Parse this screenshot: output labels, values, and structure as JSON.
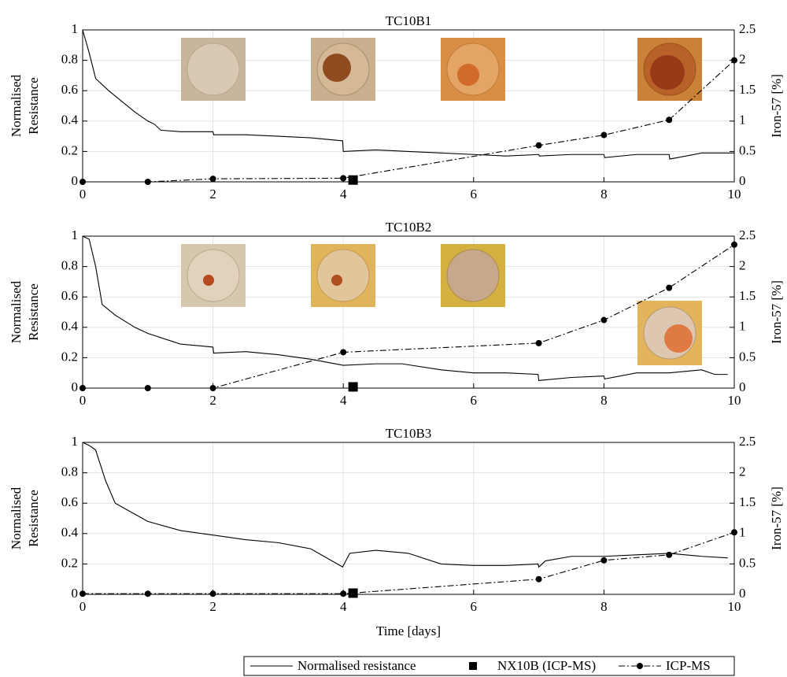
{
  "chart_data": [
    {
      "type": "line",
      "title": "TC10B1",
      "ylabel": [
        "Normalised",
        "Resistance"
      ],
      "y2label": "Iron-57 [%]",
      "xlim": [
        0,
        10
      ],
      "xticks": [
        0,
        2,
        4,
        6,
        8,
        10
      ],
      "ylim": [
        0,
        1
      ],
      "yticks": [
        0,
        0.2,
        0.4,
        0.6,
        0.8,
        1
      ],
      "y2lim": [
        0,
        2.5
      ],
      "y2ticks": [
        0,
        0.5,
        1,
        1.5,
        2,
        2.5
      ],
      "grid": true,
      "series": [
        {
          "name": "Normalised resistance",
          "color": "#000000",
          "linestyle": "solid",
          "marker": "none",
          "x": [
            0,
            0.1,
            0.2,
            0.4,
            0.6,
            0.8,
            1,
            1.1,
            1.2,
            1.5,
            2,
            2.01,
            2.5,
            3,
            3.5,
            3.99,
            4,
            4.5,
            5,
            5.5,
            6,
            6.5,
            7,
            7.01,
            7.5,
            8,
            8.01,
            8.5,
            9,
            9.01,
            9.5,
            10
          ],
          "values": [
            1,
            0.85,
            0.68,
            0.6,
            0.53,
            0.46,
            0.4,
            0.38,
            0.34,
            0.33,
            0.33,
            0.31,
            0.31,
            0.3,
            0.29,
            0.27,
            0.2,
            0.21,
            0.2,
            0.19,
            0.18,
            0.17,
            0.18,
            0.17,
            0.18,
            0.18,
            0.16,
            0.18,
            0.18,
            0.15,
            0.19,
            0.19
          ]
        },
        {
          "name": "NX10B (ICP-MS)",
          "color": "#000000",
          "linestyle": "none",
          "marker": "square",
          "axis": "y2",
          "x": [
            4.15
          ],
          "values": [
            0.03
          ]
        },
        {
          "name": "ICP-MS",
          "color": "#000000",
          "linestyle": "dashdot",
          "marker": "circle",
          "axis": "y2",
          "x": [
            0,
            1,
            2,
            4,
            7,
            8,
            9,
            10
          ],
          "values": [
            0,
            0,
            0.05,
            0.06,
            0.6,
            0.77,
            1.02,
            2.0
          ]
        }
      ]
    },
    {
      "type": "line",
      "title": "TC10B2",
      "ylabel": [
        "Normalised",
        "Resistance"
      ],
      "y2label": "Iron-57 [%]",
      "xlim": [
        0,
        10
      ],
      "xticks": [
        0,
        2,
        4,
        6,
        8,
        10
      ],
      "ylim": [
        0,
        1
      ],
      "yticks": [
        0,
        0.2,
        0.4,
        0.6,
        0.8,
        1
      ],
      "y2lim": [
        0,
        2.5
      ],
      "y2ticks": [
        0,
        0.5,
        1,
        1.5,
        2,
        2.5
      ],
      "grid": true,
      "series": [
        {
          "color": "#000000",
          "linestyle": "solid",
          "marker": "none",
          "x": [
            0,
            0.1,
            0.2,
            0.3,
            0.5,
            0.8,
            1,
            1.5,
            2,
            2.01,
            2.5,
            3,
            3.5,
            4,
            4.5,
            4.9,
            5.5,
            6,
            6.5,
            6.99,
            7,
            7.5,
            8,
            8.01,
            8.5,
            9,
            9.5,
            9.7,
            9.9
          ],
          "values": [
            1,
            0.98,
            0.8,
            0.55,
            0.48,
            0.4,
            0.36,
            0.29,
            0.27,
            0.23,
            0.24,
            0.22,
            0.19,
            0.15,
            0.16,
            0.16,
            0.12,
            0.1,
            0.1,
            0.09,
            0.05,
            0.07,
            0.08,
            0.06,
            0.1,
            0.1,
            0.12,
            0.09,
            0.09
          ]
        },
        {
          "color": "#000000",
          "linestyle": "none",
          "marker": "square",
          "axis": "y2",
          "x": [
            4.15
          ],
          "values": [
            0.02
          ]
        },
        {
          "color": "#000000",
          "linestyle": "dashdot",
          "marker": "circle",
          "axis": "y2",
          "x": [
            0,
            1,
            2,
            4,
            7,
            8,
            9,
            10
          ],
          "values": [
            0,
            0,
            0,
            0.59,
            0.74,
            1.12,
            1.65,
            2.36
          ]
        }
      ]
    },
    {
      "type": "line",
      "title": "TC10B3",
      "ylabel": [
        "Normalised",
        "Resistance"
      ],
      "y2label": "Iron-57 [%]",
      "xlabel": "Time [days]",
      "xlim": [
        0,
        10
      ],
      "xticks": [
        0,
        2,
        4,
        6,
        8,
        10
      ],
      "ylim": [
        0,
        1
      ],
      "yticks": [
        0,
        0.2,
        0.4,
        0.6,
        0.8,
        1
      ],
      "y2lim": [
        0,
        2.5
      ],
      "y2ticks": [
        0,
        0.5,
        1,
        1.5,
        2,
        2.5
      ],
      "grid": true,
      "series": [
        {
          "color": "#000000",
          "linestyle": "solid",
          "marker": "none",
          "x": [
            0,
            0.1,
            0.2,
            0.35,
            0.5,
            1,
            1.5,
            2,
            2.5,
            3,
            3.5,
            3.99,
            4.1,
            4.5,
            5,
            5.5,
            6,
            6.5,
            6.99,
            7,
            7.1,
            7.5,
            8,
            8.5,
            9,
            9.5,
            9.9
          ],
          "values": [
            1,
            0.98,
            0.95,
            0.75,
            0.6,
            0.48,
            0.42,
            0.39,
            0.36,
            0.34,
            0.3,
            0.18,
            0.27,
            0.29,
            0.27,
            0.2,
            0.19,
            0.19,
            0.2,
            0.18,
            0.22,
            0.25,
            0.25,
            0.26,
            0.27,
            0.25,
            0.24
          ]
        },
        {
          "color": "#000000",
          "linestyle": "none",
          "marker": "square",
          "axis": "y2",
          "x": [
            4.15
          ],
          "values": [
            0.02
          ]
        },
        {
          "color": "#000000",
          "linestyle": "dashdot",
          "marker": "circle",
          "axis": "y2",
          "x": [
            0,
            1,
            2,
            4,
            7,
            8,
            9,
            10
          ],
          "values": [
            0.01,
            0.01,
            0.01,
            0.01,
            0.25,
            0.56,
            0.65,
            1.02
          ]
        }
      ]
    }
  ]
}
